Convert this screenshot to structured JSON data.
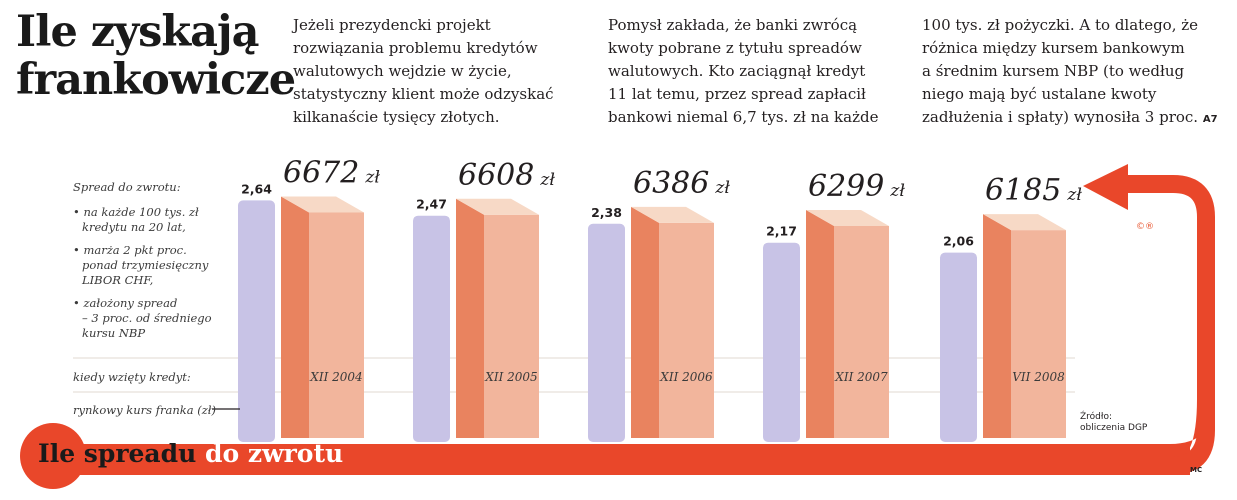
{
  "title": {
    "line1": "Ile zyskają",
    "line2": "frankowicze"
  },
  "intro": {
    "col1": [
      "Jeżeli prezydencki projekt",
      "rozwiązania problemu kredytów",
      "walutowych wejdzie w życie,",
      "statystyczny klient może odzyskać",
      "kilkanaście tysięcy złotych."
    ],
    "col2": [
      "Pomysł zakłada, że banki zwrócą",
      "kwoty pobrane z tytułu spreadów",
      "walutowych. Kto zaciągnął kredyt",
      "11 lat temu, przez spread zapłacił",
      "bankowi niemal 6,7 tys. zł na każde"
    ],
    "col3": [
      "100 tys. zł pożyczki. A to dlatego, że",
      "różnica między kursem bankowym",
      "a średnim kursem NBP (to według",
      "niego mają być ustalane kwoty",
      "zadłużenia i spłaty) wynosiła 3 proc."
    ],
    "code": "A7"
  },
  "sidebar": {
    "heading": "Spread do zwrotu:",
    "b1": [
      "• na każde 100 tys. zł",
      "kredytu na 20 lat,"
    ],
    "b2": [
      "• marża 2 pkt proc.",
      "ponad trzymiesięczny",
      "LIBOR CHF,"
    ],
    "b3": [
      "• założony spread",
      "– 3 proc. od średniego",
      "kursu NBP"
    ],
    "row_date": "kiedy wzięty kredyt:",
    "row_rate": "rynkowy kurs franka (zł)"
  },
  "chart_data": {
    "type": "bar",
    "categories": [
      "XII 2004",
      "XII 2005",
      "XII 2006",
      "XII 2007",
      "VII 2008"
    ],
    "series": [
      {
        "name": "rynkowy kurs franka (zł)",
        "values": [
          2.64,
          2.47,
          2.38,
          2.17,
          2.06
        ],
        "labels": [
          "2,64",
          "2,47",
          "2,38",
          "2,17",
          "2,06"
        ]
      },
      {
        "name": "Spread do zwrotu",
        "values": [
          6672,
          6608,
          6386,
          6299,
          6185
        ],
        "labels": [
          "6672",
          "6608",
          "6386",
          "6299",
          "6185"
        ],
        "unit": "zł"
      }
    ],
    "title": "Ile spreadu do zwrotu",
    "colors": {
      "rate": "#c8c3e6",
      "spread_front": "#f2b59c",
      "spread_side": "#e9835f",
      "spread_top": "#f7d9c6",
      "arrow": "#e9472a"
    }
  },
  "bottom_title": {
    "part1": "Ile spreadu",
    "part2": "do zwrotu"
  },
  "source": [
    "Źródło:",
    "obliczenia DGP"
  ],
  "initials": "MC",
  "cc_icon": "creative-commons-icon",
  "cc_text": "©®"
}
